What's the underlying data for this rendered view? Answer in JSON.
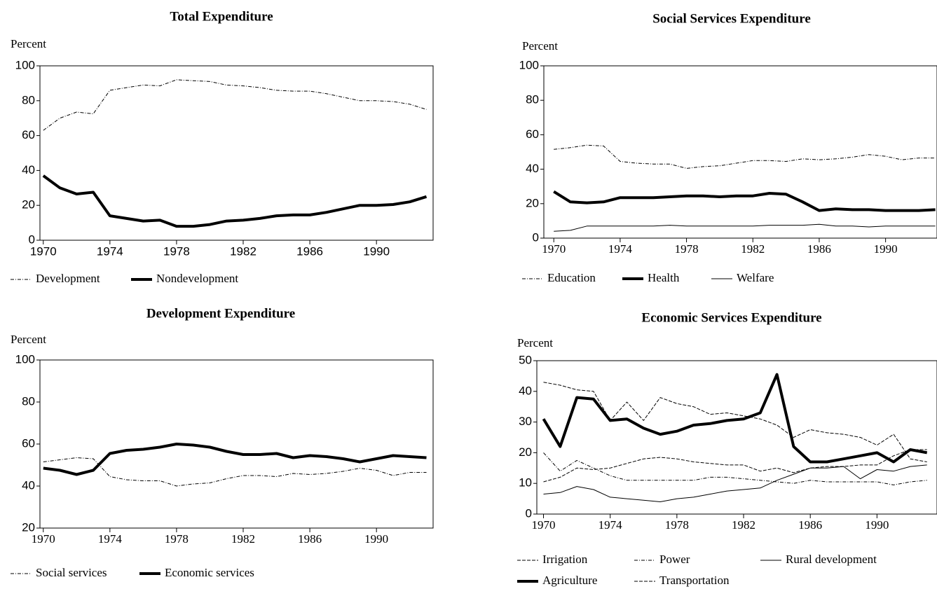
{
  "chart_data": [
    {
      "type": "line",
      "title": "Total Expenditure",
      "y_label": "Percent",
      "x": [
        1970,
        1971,
        1972,
        1973,
        1974,
        1975,
        1976,
        1977,
        1978,
        1979,
        1980,
        1981,
        1982,
        1983,
        1984,
        1985,
        1986,
        1987,
        1988,
        1989,
        1990,
        1991,
        1992,
        1993
      ],
      "xlim": [
        1969.8,
        1993.4
      ],
      "xticks": [
        1970,
        1974,
        1978,
        1982,
        1986,
        1990
      ],
      "ylim": [
        0,
        100
      ],
      "yticks": [
        0,
        20,
        40,
        60,
        80,
        100
      ],
      "series": [
        {
          "name": "Development",
          "color": "#000000",
          "style": "dashdot",
          "weight": "thin",
          "values": [
            63,
            70,
            73.5,
            72.5,
            86,
            87.5,
            89,
            88.5,
            92,
            91.5,
            91,
            89,
            88.5,
            87.5,
            86,
            85.5,
            85.5,
            84,
            82,
            80,
            80,
            79.5,
            78,
            75
          ]
        },
        {
          "name": "Nondevelopment",
          "color": "#000000",
          "style": "solid",
          "weight": "thick",
          "values": [
            37,
            30,
            26.5,
            27.5,
            14,
            12.5,
            11,
            11.5,
            8,
            8,
            9,
            11,
            11.5,
            12.5,
            14,
            14.5,
            14.5,
            16,
            18,
            20,
            20,
            20.5,
            22,
            25
          ]
        }
      ]
    },
    {
      "type": "line",
      "title": "Social Services Expenditure",
      "y_label": "Percent",
      "x": [
        1970,
        1971,
        1972,
        1973,
        1974,
        1975,
        1976,
        1977,
        1978,
        1979,
        1980,
        1981,
        1982,
        1983,
        1984,
        1985,
        1986,
        1987,
        1988,
        1989,
        1990,
        1991,
        1992,
        1993
      ],
      "xlim": [
        1969.4,
        1993.1
      ],
      "xticks": [
        1970,
        1974,
        1978,
        1982,
        1986,
        1990
      ],
      "ylim": [
        0,
        100
      ],
      "yticks": [
        0,
        20,
        40,
        60,
        80,
        100
      ],
      "series": [
        {
          "name": "Education",
          "color": "#000000",
          "style": "dashdot",
          "weight": "thin",
          "values": [
            51.5,
            52.5,
            54,
            53.5,
            44.5,
            43.5,
            43,
            43,
            40.5,
            41.5,
            42,
            43.5,
            45,
            45,
            44.5,
            46,
            45.5,
            46,
            47,
            48.5,
            47.5,
            45.5,
            46.5,
            46.5
          ]
        },
        {
          "name": "Health",
          "color": "#000000",
          "style": "solid",
          "weight": "thick",
          "values": [
            27,
            21,
            20.5,
            21,
            23.5,
            23.5,
            23.5,
            24,
            24.5,
            24.5,
            24,
            24.5,
            24.5,
            26,
            25.5,
            21,
            16,
            17,
            16.5,
            16.5,
            16,
            16,
            16,
            16.5
          ]
        },
        {
          "name": "Welfare",
          "color": "#000000",
          "style": "solid",
          "weight": "thin",
          "values": [
            4,
            4.5,
            7,
            7,
            7,
            7,
            7,
            7.5,
            7,
            7,
            7,
            7,
            7,
            7.5,
            7.5,
            7.5,
            8,
            7,
            7,
            6.5,
            7,
            7,
            7,
            7
          ]
        }
      ]
    },
    {
      "type": "line",
      "title": "Development Expenditure",
      "y_label": "Percent",
      "x": [
        1970,
        1971,
        1972,
        1973,
        1974,
        1975,
        1976,
        1977,
        1978,
        1979,
        1980,
        1981,
        1982,
        1983,
        1984,
        1985,
        1986,
        1987,
        1988,
        1989,
        1990,
        1991,
        1992,
        1993
      ],
      "xlim": [
        1969.8,
        1993.4
      ],
      "xticks": [
        1970,
        1974,
        1978,
        1982,
        1986,
        1990
      ],
      "ylim": [
        20,
        100
      ],
      "yticks": [
        20,
        40,
        60,
        80,
        100
      ],
      "series": [
        {
          "name": "Social services",
          "color": "#000000",
          "style": "dashdot",
          "weight": "thin",
          "values": [
            51.5,
            52.5,
            53.5,
            53,
            44.5,
            43,
            42.5,
            42.5,
            40,
            41,
            41.5,
            43.5,
            45,
            45,
            44.5,
            46,
            45.5,
            46,
            47,
            48.5,
            47.5,
            45,
            46.5,
            46.5
          ]
        },
        {
          "name": "Economic services",
          "color": "#000000",
          "style": "solid",
          "weight": "thick",
          "values": [
            48.5,
            47.5,
            45.5,
            47.5,
            55.5,
            57,
            57.5,
            58.5,
            60,
            59.5,
            58.5,
            56.5,
            55,
            55,
            55.5,
            53.5,
            54.5,
            54,
            53,
            51.5,
            53,
            54.5,
            54,
            53.5
          ]
        }
      ]
    },
    {
      "type": "line",
      "title": "Economic Services Expenditure",
      "y_label": "Percent",
      "x": [
        1970,
        1971,
        1972,
        1973,
        1974,
        1975,
        1976,
        1977,
        1978,
        1979,
        1980,
        1981,
        1982,
        1983,
        1984,
        1985,
        1986,
        1987,
        1988,
        1989,
        1990,
        1991,
        1992,
        1993
      ],
      "xlim": [
        1969.6,
        1993.6
      ],
      "xticks": [
        1970,
        1974,
        1978,
        1982,
        1986,
        1990
      ],
      "ylim": [
        0,
        50
      ],
      "yticks": [
        0,
        10,
        20,
        30,
        40,
        50
      ],
      "series": [
        {
          "name": "Irrigation",
          "color": "#000000",
          "style": "dashed",
          "weight": "thin",
          "values": [
            43,
            42,
            40.5,
            40,
            30.5,
            36.5,
            30.5,
            38,
            36,
            35,
            32.5,
            33,
            32,
            31,
            29,
            25,
            27.5,
            26.5,
            26,
            25,
            22.5,
            26,
            18,
            17
          ]
        },
        {
          "name": "Power",
          "color": "#000000",
          "style": "dashdot",
          "weight": "thin",
          "values": [
            20,
            14,
            17.5,
            15,
            12.5,
            11,
            11,
            11,
            11,
            11,
            12,
            12,
            11.5,
            11,
            10.5,
            10,
            11,
            10.5,
            10.5,
            10.5,
            10.5,
            9.5,
            10.5,
            11
          ]
        },
        {
          "name": "Rural development",
          "color": "#000000",
          "style": "solid",
          "weight": "thin",
          "values": [
            6.5,
            7,
            9,
            8,
            5.5,
            5,
            4.5,
            4,
            5,
            5.5,
            6.5,
            7.5,
            8,
            8.5,
            11,
            13,
            15,
            15,
            15.5,
            11.5,
            14.5,
            14,
            15.5,
            16
          ]
        },
        {
          "name": "Agriculture",
          "color": "#000000",
          "style": "solid",
          "weight": "thick",
          "values": [
            31,
            22,
            38,
            37.5,
            30.5,
            31,
            28,
            26,
            27,
            29,
            29.5,
            30.5,
            31,
            33,
            45.5,
            22,
            17,
            17,
            18,
            19,
            20,
            17,
            21,
            20
          ]
        },
        {
          "name": "Transportation",
          "color": "#000000",
          "style": "dashed",
          "weight": "thin",
          "values": [
            10.5,
            12,
            15,
            14.5,
            15,
            16.5,
            18,
            18.5,
            18,
            17,
            16.5,
            16,
            16,
            14,
            15,
            13.5,
            15,
            15.5,
            15.5,
            16,
            16,
            19,
            21,
            21
          ]
        }
      ]
    }
  ]
}
